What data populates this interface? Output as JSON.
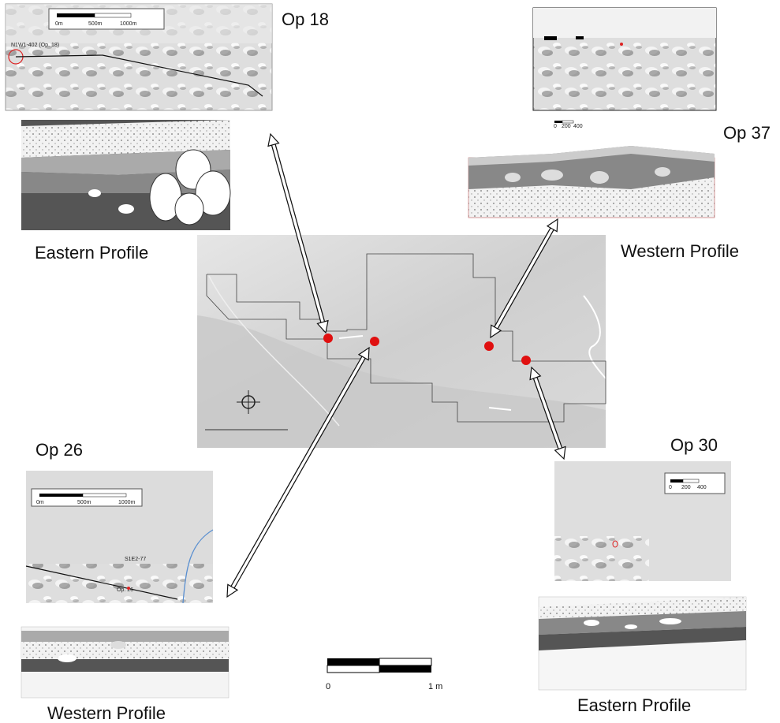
{
  "panels": [
    {
      "label": "Op 18",
      "caption": "Eastern Profile",
      "map_labels": [
        "0m",
        "500m",
        "1000m",
        "N1W1-402 (Op. 18)"
      ]
    },
    {
      "label": "Op 37",
      "caption": "Western Profile",
      "map_labels": [
        "0",
        "200",
        "400"
      ]
    },
    {
      "label": "Op 26",
      "caption": "Western Profile",
      "map_labels": [
        "0m",
        "500m",
        "1000m",
        "S1E2-77",
        "Op. 26"
      ]
    },
    {
      "label": "Op 30",
      "caption": "Eastern Profile",
      "map_labels": [
        "0",
        "200",
        "400"
      ]
    }
  ],
  "scale_bar": {
    "start": "0",
    "end": "1 m"
  }
}
